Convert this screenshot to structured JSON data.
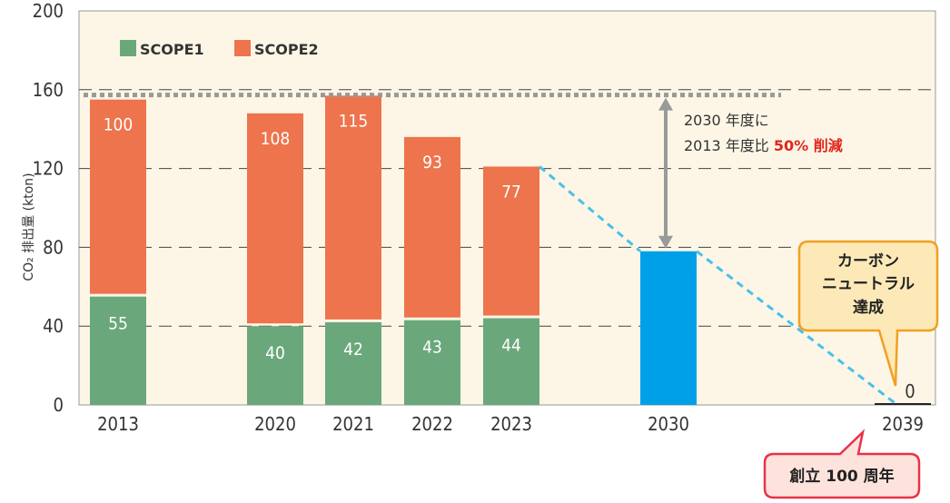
{
  "chart_data": {
    "type": "bar",
    "stacked": true,
    "ylabel": "CO₂ 排出量 (kton)",
    "ylim": [
      0,
      200
    ],
    "yticks": [
      "0",
      "40",
      "80",
      "120",
      "160",
      "200"
    ],
    "grid": "dashed horizontal",
    "legend_position": "top-left",
    "categories": [
      "2013",
      "2020",
      "2021",
      "2022",
      "2023",
      "2030",
      "2039"
    ],
    "series": [
      {
        "name": "SCOPE1",
        "color": "#6aa87b",
        "values": [
          55,
          40,
          42,
          43,
          44,
          null,
          null
        ]
      },
      {
        "name": "SCOPE2",
        "color": "#ed744c",
        "values": [
          100,
          108,
          115,
          93,
          77,
          null,
          null
        ]
      }
    ],
    "target_2030": {
      "value": 78,
      "color": "#00a0e9"
    },
    "target_2039": {
      "value": 0,
      "label": "0"
    },
    "data_labels": {
      "scope1": [
        "55",
        "40",
        "42",
        "43",
        "44"
      ],
      "scope2": [
        "100",
        "108",
        "115",
        "93",
        "77"
      ]
    },
    "annotation_reduction": {
      "line1": "2030 年度に",
      "line2_prefix": "2013 年度比 ",
      "line2_highlight": "50% 削減"
    },
    "callout_neutral": [
      "カーボン",
      "ニュートラル",
      "達成"
    ],
    "callout_anniversary": "創立 100 周年",
    "colors": {
      "background": "#fdf6e6",
      "baseline_dotted": "#999999",
      "trend_dashed": "#48c0ea",
      "callout_neutral_fill": "#fde9b8",
      "callout_neutral_border": "#f0a020",
      "callout_anniv_fill": "#fde3dc",
      "callout_anniv_border": "#e8334a"
    }
  }
}
